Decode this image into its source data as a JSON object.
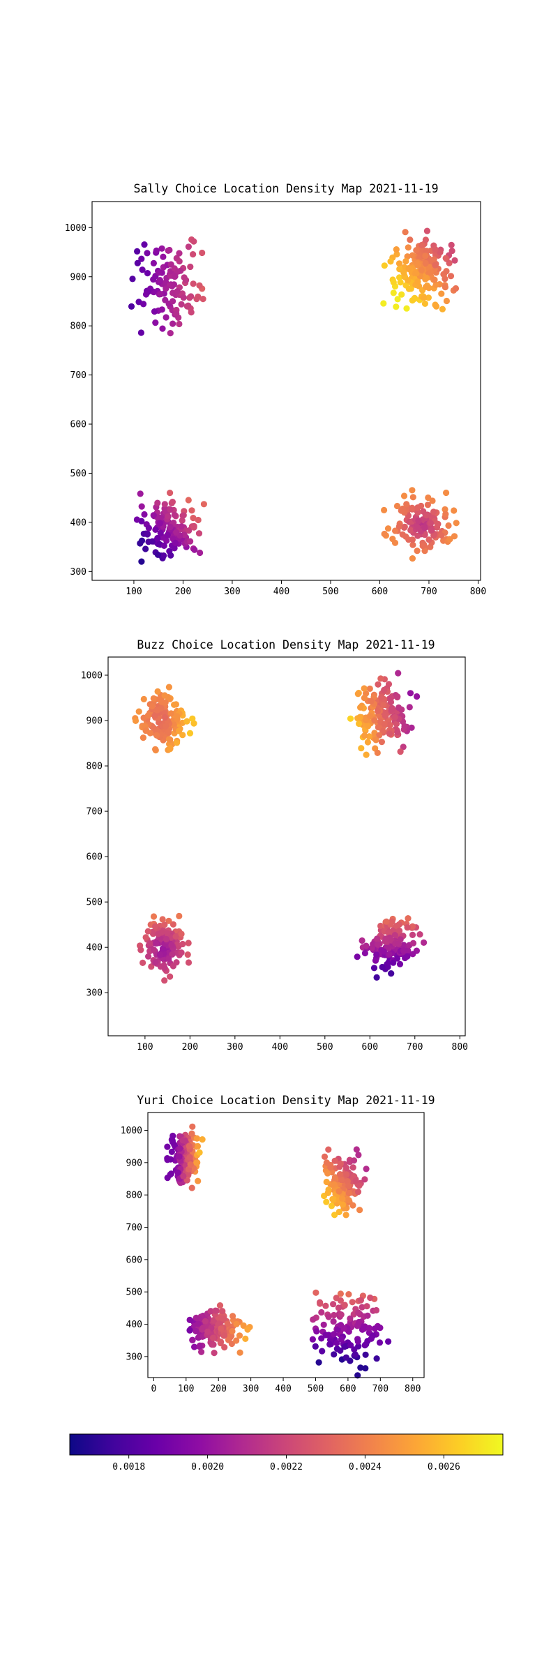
{
  "figure": {
    "colormap": "plasma",
    "colormap_stops": [
      "#0d0887",
      "#41049d",
      "#6a00a8",
      "#8f0da4",
      "#b12a90",
      "#cc4778",
      "#e16462",
      "#f2844b",
      "#fca636",
      "#fcce25",
      "#f0f921"
    ]
  },
  "colorbar": {
    "range": [
      0.00165,
      0.00275
    ],
    "ticks": [
      "0.0018",
      "0.0020",
      "0.0022",
      "0.0024",
      "0.0026"
    ]
  },
  "chart_data": [
    {
      "type": "scatter",
      "title": "Sally Choice Location Density Map 2021-11-19",
      "xlim": [
        15,
        805
      ],
      "ylim": [
        282,
        1053
      ],
      "xticks": [
        100,
        200,
        300,
        400,
        500,
        600,
        700,
        800
      ],
      "yticks": [
        300,
        400,
        500,
        600,
        700,
        800,
        900,
        1000
      ],
      "grid": false,
      "clusters": [
        {
          "label": "upper-left",
          "n": 110,
          "center": [
            175,
            875
          ],
          "spread": [
            35,
            40
          ],
          "density_min": 0.0018,
          "density_max": 0.00232,
          "gradient": "left-to-right"
        },
        {
          "label": "upper-right",
          "n": 180,
          "center": [
            685,
            910
          ],
          "spread": [
            30,
            33
          ],
          "density_min": 0.00222,
          "density_max": 0.00272,
          "gradient": "top-right-dark-bottom-left-yellow"
        },
        {
          "label": "lower-left",
          "n": 130,
          "center": [
            170,
            385
          ],
          "spread": [
            30,
            30
          ],
          "density_min": 0.0017,
          "density_max": 0.00232,
          "gradient": "bottom-left-dark-top-right-warm"
        },
        {
          "label": "lower-right",
          "n": 140,
          "center": [
            685,
            395
          ],
          "spread": [
            30,
            28
          ],
          "density_min": 0.00205,
          "density_max": 0.00245,
          "gradient": "center-dark-edges-warm"
        }
      ]
    },
    {
      "type": "scatter",
      "title": "Buzz Choice Location Density Map 2021-11-19",
      "xlim": [
        18,
        812
      ],
      "ylim": [
        205,
        1040
      ],
      "xticks": [
        100,
        200,
        300,
        400,
        500,
        600,
        700,
        800
      ],
      "yticks": [
        300,
        400,
        500,
        600,
        700,
        800,
        900,
        1000
      ],
      "grid": false,
      "clusters": [
        {
          "label": "upper-left",
          "n": 140,
          "center": [
            140,
            900
          ],
          "spread": [
            27,
            30
          ],
          "density_min": 0.00215,
          "density_max": 0.00262,
          "gradient": "center-warm-right-yellow"
        },
        {
          "label": "upper-right",
          "n": 150,
          "center": [
            625,
            915
          ],
          "spread": [
            32,
            38
          ],
          "density_min": 0.002,
          "density_max": 0.00268,
          "gradient": "left-yellow-right-purple"
        },
        {
          "label": "lower-left",
          "n": 130,
          "center": [
            140,
            400
          ],
          "spread": [
            22,
            30
          ],
          "density_min": 0.0019,
          "density_max": 0.00238,
          "gradient": "center-purple-top-orange"
        },
        {
          "label": "lower-right",
          "n": 130,
          "center": [
            645,
            405
          ],
          "spread": [
            30,
            28
          ],
          "density_min": 0.00175,
          "density_max": 0.0024,
          "gradient": "top-orange-bottom-dark"
        }
      ]
    },
    {
      "type": "scatter",
      "title": "Yuri Choice Location Density Map 2021-11-19",
      "xlim": [
        -18,
        835
      ],
      "ylim": [
        235,
        1055
      ],
      "xticks": [
        0,
        100,
        200,
        300,
        400,
        500,
        600,
        700,
        800
      ],
      "yticks": [
        300,
        400,
        500,
        600,
        700,
        800,
        900,
        1000
      ],
      "grid": false,
      "clusters": [
        {
          "label": "upper-left",
          "n": 150,
          "center": [
            95,
            920
          ],
          "spread": [
            22,
            38
          ],
          "density_min": 0.0019,
          "density_max": 0.00265,
          "gradient": "left-purple-right-yellow"
        },
        {
          "label": "upper-right",
          "n": 140,
          "center": [
            585,
            840
          ],
          "spread": [
            30,
            40
          ],
          "density_min": 0.0021,
          "density_max": 0.00262,
          "gradient": "bottom-left-yellow-top-right-purple"
        },
        {
          "label": "lower-left",
          "n": 140,
          "center": [
            185,
            385
          ],
          "spread": [
            45,
            30
          ],
          "density_min": 0.0019,
          "density_max": 0.00255,
          "gradient": "left-purple-right-orange"
        },
        {
          "label": "lower-right",
          "n": 120,
          "center": [
            600,
            380
          ],
          "spread": [
            50,
            55
          ],
          "density_min": 0.0017,
          "density_max": 0.0024,
          "gradient": "arc-purple-top-warm"
        }
      ]
    }
  ]
}
